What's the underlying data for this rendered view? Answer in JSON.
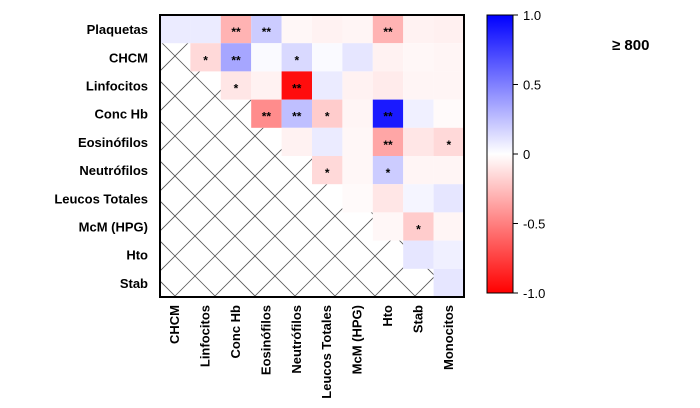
{
  "chart_data": {
    "type": "heatmap",
    "title": "",
    "annotation": "≥ 800",
    "row_labels": [
      "Plaquetas",
      "CHCM",
      "Linfocitos",
      "Conc Hb",
      "Eosinófilos",
      "Neutrófilos",
      "Leucos Totales",
      "McM (HPG)",
      "Hto",
      "Stab"
    ],
    "col_labels": [
      "CHCM",
      "Linfocitos",
      "Conc Hb",
      "Eosinófilos",
      "Neutrófilos",
      "Leucos Totales",
      "McM (HPG)",
      "Hto",
      "Stab",
      "Monocitos"
    ],
    "values": [
      [
        0.08,
        0.08,
        -0.3,
        0.2,
        -0.03,
        -0.05,
        -0.04,
        -0.3,
        -0.05,
        -0.06
      ],
      [
        null,
        -0.15,
        0.35,
        0.02,
        0.15,
        0.02,
        0.1,
        -0.05,
        -0.03,
        -0.04
      ],
      [
        null,
        null,
        -0.1,
        -0.05,
        -0.95,
        0.08,
        -0.05,
        -0.08,
        -0.04,
        -0.04
      ],
      [
        null,
        null,
        null,
        -0.45,
        0.25,
        -0.2,
        -0.04,
        0.9,
        0.06,
        -0.02
      ],
      [
        null,
        null,
        null,
        null,
        -0.05,
        0.08,
        -0.03,
        -0.35,
        -0.1,
        -0.15
      ],
      [
        null,
        null,
        null,
        null,
        null,
        -0.15,
        -0.03,
        0.2,
        -0.04,
        -0.04
      ],
      [
        null,
        null,
        null,
        null,
        null,
        null,
        -0.02,
        -0.1,
        0.04,
        0.1
      ],
      [
        null,
        null,
        null,
        null,
        null,
        null,
        null,
        -0.03,
        -0.2,
        -0.04
      ],
      [
        null,
        null,
        null,
        null,
        null,
        null,
        null,
        null,
        0.1,
        0.06
      ],
      [
        null,
        null,
        null,
        null,
        null,
        null,
        null,
        null,
        null,
        0.1
      ]
    ],
    "significance": [
      [
        "",
        "",
        "**",
        "**",
        "",
        "",
        "",
        "**",
        "",
        ""
      ],
      [
        "",
        "*",
        "**",
        "",
        "*",
        "",
        "",
        "",
        "",
        ""
      ],
      [
        "",
        "",
        "*",
        "",
        "**",
        "",
        "",
        "",
        "",
        ""
      ],
      [
        "",
        "",
        "",
        "**",
        "**",
        "*",
        "",
        "**",
        "",
        ""
      ],
      [
        "",
        "",
        "",
        "",
        "",
        "",
        "",
        "**",
        "",
        "*"
      ],
      [
        "",
        "",
        "",
        "",
        "",
        "*",
        "",
        "*",
        "",
        ""
      ],
      [
        "",
        "",
        "",
        "",
        "",
        "",
        "",
        "",
        "",
        ""
      ],
      [
        "",
        "",
        "",
        "",
        "",
        "",
        "",
        "",
        "*",
        ""
      ],
      [
        "",
        "",
        "",
        "",
        "",
        "",
        "",
        "",
        "",
        ""
      ],
      [
        "",
        "",
        "",
        "",
        "",
        "",
        "",
        "",
        "",
        ""
      ]
    ],
    "colorbar": {
      "min": -1.0,
      "max": 1.0,
      "ticks": [
        {
          "value": 1.0,
          "label": "1.0"
        },
        {
          "value": 0.5,
          "label": "0.5"
        },
        {
          "value": 0,
          "label": "0"
        },
        {
          "value": -0.5,
          "label": "-0.5"
        },
        {
          "value": -1.0,
          "label": "-1.0"
        }
      ],
      "colors": {
        "negative": "#ff0000",
        "zero": "#ffffff",
        "positive": "#0000ff"
      }
    }
  }
}
